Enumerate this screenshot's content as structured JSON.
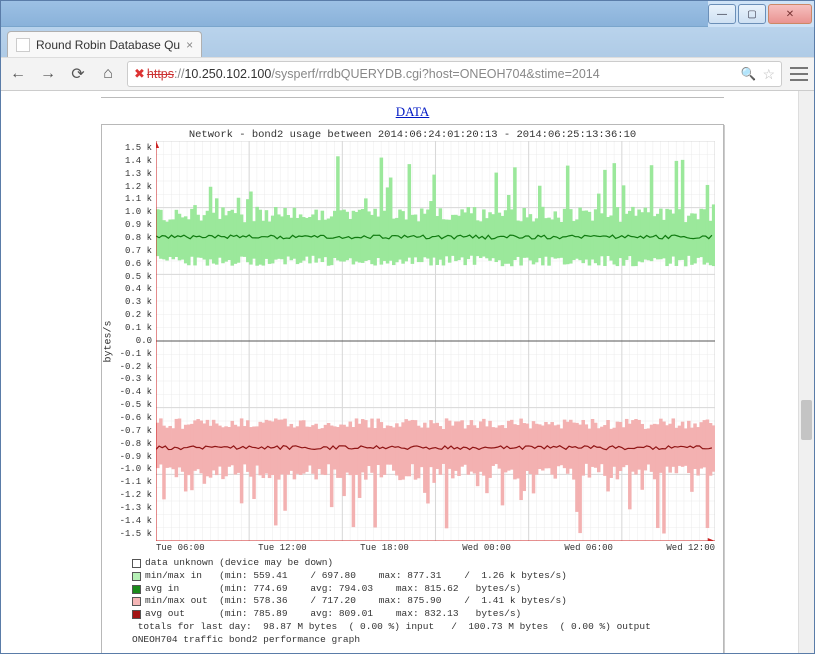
{
  "window": {
    "min": "—",
    "max": "▢",
    "close": "✕"
  },
  "tab": {
    "title": "Round Robin Database Qu",
    "close": "×"
  },
  "toolbar": {
    "back": "←",
    "forward": "→",
    "reload": "⟳",
    "home": "⌂",
    "menu": "≡"
  },
  "address": {
    "warn": "✖",
    "scheme_struck": "https",
    "after_scheme": "://",
    "host": "10.250.102.100",
    "path": "/sysperf/rrdbQUERYDB.cgi?host=ONEOH704&stime=2014",
    "search_glyph": "🔍",
    "star_glyph": "☆"
  },
  "page": {
    "data_link": "DATA"
  },
  "chart": {
    "type": "area-line-mirrored",
    "title": "Network - bond2 usage between 2014:06:24:01:20:13 - 2014:06:25:13:36:10",
    "y_axis_label": "bytes/s",
    "background_color": "#ffffff",
    "grid_minor_color": "#ececec",
    "grid_major_color": "#d8d8d8",
    "axis_color": "#cc2222",
    "ylim": [
      -1.5,
      1.5
    ],
    "ytick_step": 0.1,
    "yticks": [
      "1.5 k",
      "1.4 k",
      "1.3 k",
      "1.2 k",
      "1.1 k",
      "1.0 k",
      "0.9 k",
      "0.8 k",
      "0.7 k",
      "0.6 k",
      "0.5 k",
      "0.4 k",
      "0.3 k",
      "0.2 k",
      "0.1 k",
      "0.0",
      "-0.1 k",
      "-0.2 k",
      "-0.3 k",
      "-0.4 k",
      "-0.5 k",
      "-0.6 k",
      "-0.7 k",
      "-0.8 k",
      "-0.9 k",
      "-1.0 k",
      "-1.1 k",
      "-1.2 k",
      "-1.3 k",
      "-1.4 k",
      "-1.5 k"
    ],
    "xticks": [
      "Tue 06:00",
      "Tue 12:00",
      "Tue 18:00",
      "Wed 00:00",
      "Wed 06:00",
      "Wed 12:00"
    ],
    "series": {
      "in_fill_color": "#9be89b",
      "in_line_color": "#0f7a0f",
      "out_fill_color": "#f3b1b1",
      "out_line_color": "#8f1414",
      "in_min_base": 0.6,
      "in_max_base": 0.95,
      "in_spike_max": 1.4,
      "in_avg_base": 0.78,
      "out_min_base": -0.62,
      "out_max_base": -0.98,
      "out_spike_max": -1.45,
      "out_avg_base": -0.8
    }
  },
  "legend": {
    "rows": [
      {
        "swatch": "sw-unknown",
        "text": "data unknown (device may be down)"
      },
      {
        "swatch": "sw-minmax-in",
        "text": "min/max in   (min: 559.41    / 697.80    max: 877.31    /  1.26 k bytes/s)"
      },
      {
        "swatch": "sw-avg-in",
        "text": "avg in       (min: 774.69    avg: 794.03    max: 815.62   bytes/s)"
      },
      {
        "swatch": "sw-minmax-out",
        "text": "min/max out  (min: 578.36    / 717.20    max: 875.90    /  1.41 k bytes/s)"
      },
      {
        "swatch": "sw-avg-out",
        "text": "avg out      (min: 785.89    avg: 809.01    max: 832.13   bytes/s)"
      }
    ],
    "footer1": " totals for last day:  98.87 M bytes  ( 0.00 %) input   /  100.73 M bytes  ( 0.00 %) output",
    "footer2": "ONEOH704 traffic bond2 performance graph"
  }
}
